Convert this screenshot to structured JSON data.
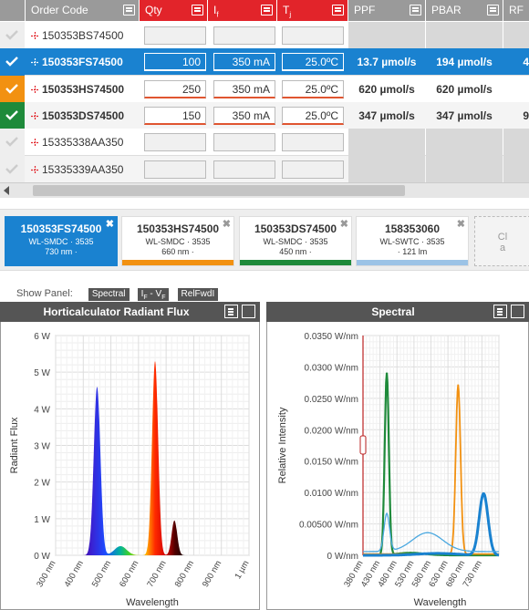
{
  "grid": {
    "columns": {
      "order_code": "Order Code",
      "qty": "Qty",
      "if": "I",
      "if_sub": "f",
      "tj": "T",
      "tj_sub": "j",
      "ppf": "PPF",
      "pbar": "PBAR",
      "rf": "RF"
    },
    "rows": [
      {
        "code": "150353BS74500",
        "qty": "",
        "if": "",
        "tj": "",
        "ppf": "",
        "pbar": "",
        "rf": "",
        "state": "off"
      },
      {
        "code": "150353FS74500",
        "qty": "100",
        "if": "350 mA",
        "tj": "25.0ºC",
        "ppf": "13.7 µmol/s",
        "pbar": "194 µmol/s",
        "rf": "4",
        "state": "blue"
      },
      {
        "code": "150353HS74500",
        "qty": "250",
        "if": "350 mA",
        "tj": "25.0ºC",
        "ppf": "620 µmol/s",
        "pbar": "620 µmol/s",
        "rf": "",
        "state": "orange"
      },
      {
        "code": "150353DS74500",
        "qty": "150",
        "if": "350 mA",
        "tj": "25.0ºC",
        "ppf": "347 µmol/s",
        "pbar": "347 µmol/s",
        "rf": "9",
        "state": "green"
      },
      {
        "code": "15335338AA350",
        "qty": "",
        "if": "",
        "tj": "",
        "ppf": "",
        "pbar": "",
        "rf": "",
        "state": "off"
      },
      {
        "code": "15335339AA350",
        "qty": "",
        "if": "",
        "tj": "",
        "ppf": "",
        "pbar": "",
        "rf": "",
        "state": "off"
      }
    ]
  },
  "cards": [
    {
      "title": "150353FS74500",
      "line1": "WL-SMDC · 3535",
      "line2": "730 nm ·",
      "color": "#1a82d0",
      "active": true
    },
    {
      "title": "150353HS74500",
      "line1": "WL-SMDC · 3535",
      "line2": "660 nm ·",
      "color": "#f29111",
      "active": false
    },
    {
      "title": "150353DS74500",
      "line1": "WL-SMDC · 3535",
      "line2": "450 nm ·",
      "color": "#1e8a3a",
      "active": false
    },
    {
      "title": "158353060",
      "line1": "WL-SWTC · 3535",
      "line2": "· 121 lm",
      "color": "#9cc3e6",
      "active": false
    }
  ],
  "add_card": {
    "line1": "Cl",
    "line2": "a"
  },
  "show_panel": {
    "label": "Show Panel:",
    "buttons": [
      "Spectral",
      "IF - VF",
      "RelFwdI"
    ]
  },
  "colors": {
    "header_gray": "#9a9a9a",
    "header_red": "#e2242a",
    "selected_blue": "#1a82d0",
    "orange": "#f29111",
    "green": "#1e8a3a"
  },
  "chart_data": [
    {
      "type": "line",
      "title": "Horticalculator Radiant Flux",
      "xlabel": "Wavelength",
      "ylabel": "Radiant Flux",
      "x_ticks": [
        "300 nm",
        "400 nm",
        "500 nm",
        "600 nm",
        "700 nm",
        "800 nm",
        "900 nm",
        "1 µm"
      ],
      "y_ticks": [
        "0 W",
        "1 W",
        "2 W",
        "3 W",
        "4 W",
        "5 W",
        "6 W"
      ],
      "xlim": [
        300,
        1000
      ],
      "ylim": [
        0,
        6
      ],
      "grid": true,
      "series": [
        {
          "peak_nm": 450,
          "peak_w": 4.6,
          "fill": "spectral rainbow"
        },
        {
          "peak_nm": 535,
          "peak_w": 0.25
        },
        {
          "peak_nm": 660,
          "peak_w": 5.3
        },
        {
          "peak_nm": 730,
          "peak_w": 0.95
        }
      ]
    },
    {
      "type": "line",
      "title": "Spectral",
      "xlabel": "Wavelength",
      "ylabel": "Relative Intensity",
      "x_ticks": [
        "380 nm",
        "430 nm",
        "480 nm",
        "530 nm",
        "580 nm",
        "630 nm",
        "680 nm",
        "730 nm"
      ],
      "y_ticks": [
        "0 W/nm",
        "0.00500 W/nm",
        "0.0100 W/nm",
        "0.0150 W/nm",
        "0.0200 W/nm",
        "0.0250 W/nm",
        "0.0300 W/nm",
        "0.0350 W/nm"
      ],
      "xlim": [
        380,
        780
      ],
      "ylim": [
        0,
        0.035
      ],
      "grid": true,
      "series": [
        {
          "color": "#1e8a3a",
          "peak_nm": 450,
          "peak": 0.029
        },
        {
          "color": "#f29111",
          "peak_nm": 660,
          "peak": 0.027
        },
        {
          "color": "#1a82d0",
          "peak_nm": 730,
          "peak": 0.0098
        },
        {
          "color": "#4aa8e0",
          "peak_nm": 450,
          "peak": 0.006
        }
      ]
    }
  ]
}
